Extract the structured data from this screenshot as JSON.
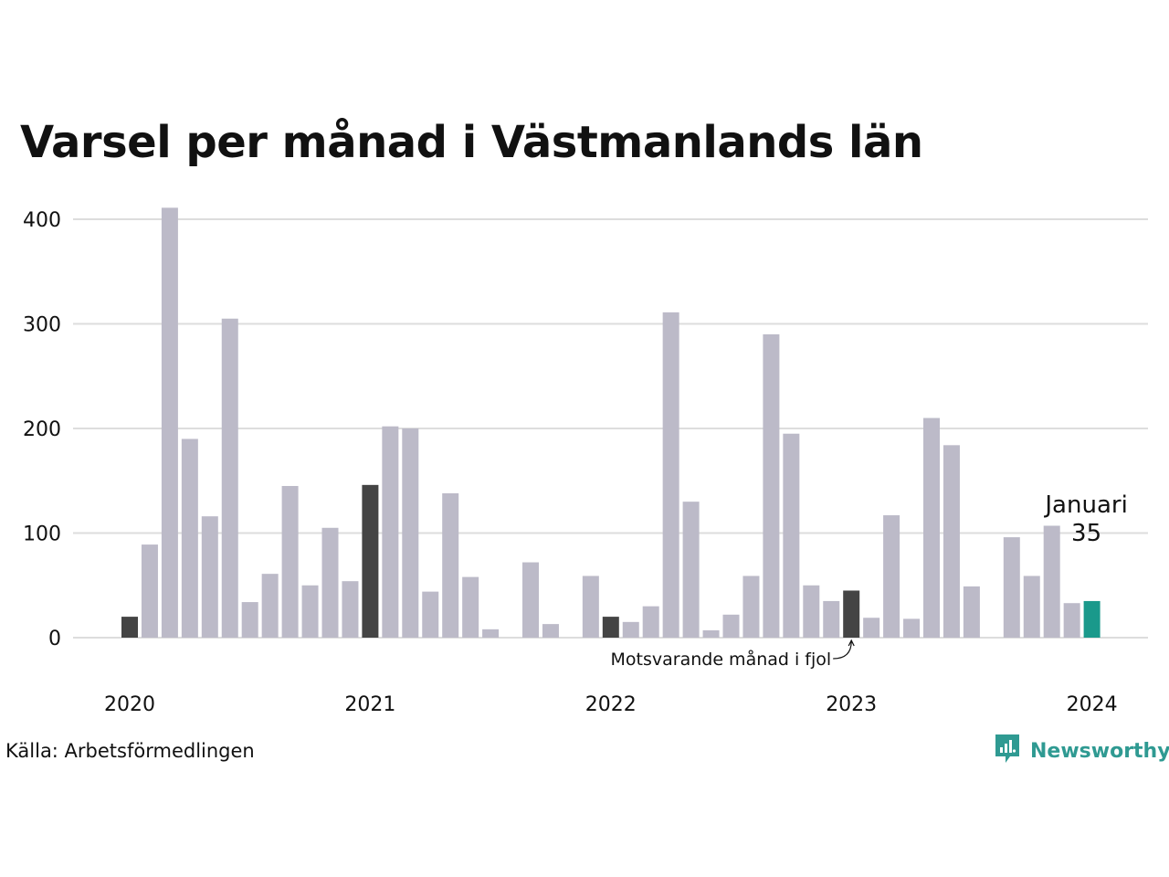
{
  "title": "Varsel per månad i Västmanlands län",
  "source": "Källa: Arbetsförmedlingen",
  "brand": {
    "name": "Newsworthy",
    "icon": "newsworthy-logo-icon",
    "color": "#2f9a92"
  },
  "colors": {
    "bar": "#bcbac8",
    "same_month": "#444444",
    "current": "#1a998b",
    "grid": "#dddddd"
  },
  "annotations": {
    "current_label": "Januari",
    "current_value": "35",
    "same_month_label": "Motsvarande månad i fjol"
  },
  "chart_data": {
    "type": "bar",
    "ylim": [
      0,
      400
    ],
    "yticks": [
      0,
      100,
      200,
      300,
      400
    ],
    "xtick_labels": [
      "2020",
      "2021",
      "2022",
      "2023",
      "2024"
    ],
    "grid": true,
    "months": [
      "2020-01",
      "2020-02",
      "2020-03",
      "2020-04",
      "2020-05",
      "2020-06",
      "2020-07",
      "2020-08",
      "2020-09",
      "2020-10",
      "2020-11",
      "2020-12",
      "2021-01",
      "2021-02",
      "2021-03",
      "2021-04",
      "2021-05",
      "2021-06",
      "2021-07",
      "2021-08",
      "2021-09",
      "2021-10",
      "2021-11",
      "2021-12",
      "2022-01",
      "2022-02",
      "2022-03",
      "2022-04",
      "2022-05",
      "2022-06",
      "2022-07",
      "2022-08",
      "2022-09",
      "2022-10",
      "2022-11",
      "2022-12",
      "2023-01",
      "2023-02",
      "2023-03",
      "2023-04",
      "2023-05",
      "2023-06",
      "2023-07",
      "2023-08",
      "2023-09",
      "2023-10",
      "2023-11",
      "2023-12",
      "2024-01"
    ],
    "values": [
      20,
      89,
      411,
      190,
      116,
      305,
      34,
      61,
      145,
      50,
      105,
      54,
      146,
      202,
      200,
      44,
      138,
      58,
      8,
      0,
      72,
      13,
      0,
      59,
      20,
      15,
      30,
      311,
      130,
      7,
      22,
      59,
      290,
      195,
      50,
      35,
      45,
      19,
      117,
      18,
      210,
      184,
      49,
      0,
      96,
      59,
      107,
      33,
      35
    ],
    "highlight_same_month": [
      "2020-01",
      "2021-01",
      "2022-01",
      "2023-01"
    ],
    "highlight_current": "2024-01"
  }
}
